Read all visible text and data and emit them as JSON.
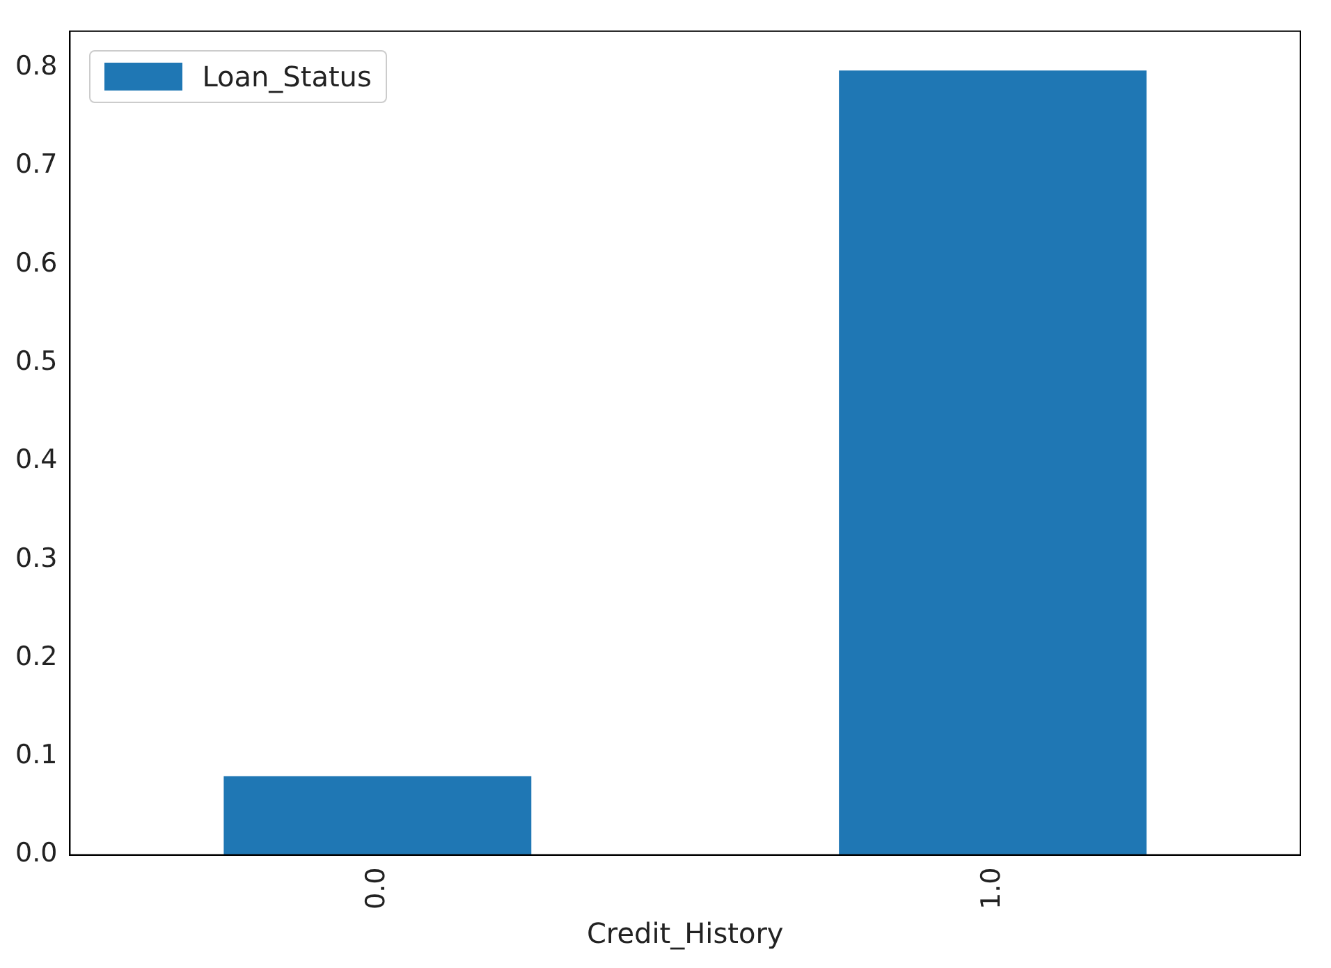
{
  "chart_data": {
    "type": "bar",
    "xlabel": "Credit_History",
    "categories": [
      "0.0",
      "1.0"
    ],
    "series": [
      {
        "name": "Loan_Status",
        "color": "#1f77b4",
        "values": [
          0.08,
          0.797
        ]
      }
    ],
    "ylim": [
      0,
      0.837
    ],
    "yticks": [
      {
        "value": 0,
        "label": "0.0"
      },
      0.1,
      0.2,
      0.3,
      0.4,
      0.5,
      0.6,
      0.7,
      0.8
    ],
    "grid": false,
    "legend": "top left"
  }
}
